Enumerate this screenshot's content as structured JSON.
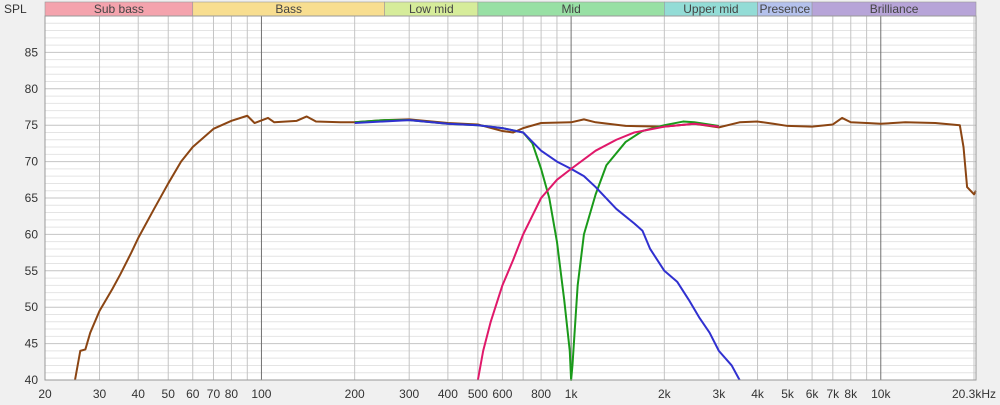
{
  "chart_data": {
    "type": "line",
    "ylabel": "SPL",
    "xunit": "Hz",
    "xscale": "log",
    "xlim": [
      20,
      20300
    ],
    "ylim": [
      40,
      90
    ],
    "grid": true,
    "bands": [
      {
        "label": "Sub bass",
        "from": 20,
        "to": 60,
        "color": "#f4a3ad"
      },
      {
        "label": "Bass",
        "from": 60,
        "to": 250,
        "color": "#f8de90"
      },
      {
        "label": "Low mid",
        "from": 250,
        "to": 500,
        "color": "#d6ec9a"
      },
      {
        "label": "Mid",
        "from": 500,
        "to": 2000,
        "color": "#98e0a4"
      },
      {
        "label": "Upper mid",
        "from": 2000,
        "to": 4000,
        "color": "#93dcd6"
      },
      {
        "label": "Presence",
        "from": 4000,
        "to": 6000,
        "color": "#b4c1ec"
      },
      {
        "label": "Brilliance",
        "from": 6000,
        "to": 20300,
        "color": "#b7a4d8"
      }
    ],
    "x_ticks": [
      {
        "v": 20,
        "label": "20"
      },
      {
        "v": 30,
        "label": "30"
      },
      {
        "v": 40,
        "label": "40"
      },
      {
        "v": 50,
        "label": "50"
      },
      {
        "v": 60,
        "label": "60"
      },
      {
        "v": 70,
        "label": "70"
      },
      {
        "v": 80,
        "label": "80"
      },
      {
        "v": 100,
        "label": "100"
      },
      {
        "v": 200,
        "label": "200"
      },
      {
        "v": 300,
        "label": "300"
      },
      {
        "v": 400,
        "label": "400"
      },
      {
        "v": 500,
        "label": "500"
      },
      {
        "v": 600,
        "label": "600"
      },
      {
        "v": 800,
        "label": "800"
      },
      {
        "v": 1000,
        "label": "1k"
      },
      {
        "v": 2000,
        "label": "2k"
      },
      {
        "v": 3000,
        "label": "3k"
      },
      {
        "v": 4000,
        "label": "4k"
      },
      {
        "v": 5000,
        "label": "5k"
      },
      {
        "v": 6000,
        "label": "6k"
      },
      {
        "v": 7000,
        "label": "7k"
      },
      {
        "v": 8000,
        "label": "8k"
      },
      {
        "v": 10000,
        "label": "10k"
      },
      {
        "v": 20300,
        "label": "20.3kHz"
      }
    ],
    "y_ticks": [
      40,
      45,
      50,
      55,
      60,
      65,
      70,
      75,
      80,
      85
    ],
    "series": [
      {
        "color": "#8b4513",
        "points": [
          [
            25,
            40
          ],
          [
            26,
            44
          ],
          [
            27,
            44.2
          ],
          [
            28,
            46.5
          ],
          [
            30,
            49.5
          ],
          [
            33,
            52.5
          ],
          [
            35,
            54.5
          ],
          [
            38,
            57.5
          ],
          [
            40,
            59.5
          ],
          [
            45,
            63.5
          ],
          [
            50,
            67
          ],
          [
            55,
            70
          ],
          [
            60,
            72
          ],
          [
            70,
            74.5
          ],
          [
            80,
            75.6
          ],
          [
            90,
            76.3
          ],
          [
            95,
            75.3
          ],
          [
            105,
            76
          ],
          [
            110,
            75.4
          ],
          [
            130,
            75.6
          ],
          [
            140,
            76.2
          ],
          [
            150,
            75.5
          ],
          [
            180,
            75.4
          ],
          [
            200,
            75.4
          ],
          [
            250,
            75.7
          ],
          [
            300,
            75.8
          ],
          [
            400,
            75.3
          ],
          [
            500,
            75.1
          ],
          [
            600,
            74.2
          ],
          [
            650,
            74
          ],
          [
            700,
            74.6
          ],
          [
            800,
            75.3
          ],
          [
            1000,
            75.4
          ],
          [
            1100,
            75.8
          ],
          [
            1200,
            75.4
          ],
          [
            1500,
            74.9
          ],
          [
            2000,
            74.8
          ],
          [
            2500,
            75.2
          ],
          [
            3000,
            74.7
          ],
          [
            3500,
            75.4
          ],
          [
            4000,
            75.5
          ],
          [
            4500,
            75.2
          ],
          [
            5000,
            74.9
          ],
          [
            6000,
            74.8
          ],
          [
            7000,
            75.1
          ],
          [
            7500,
            76
          ],
          [
            8000,
            75.4
          ],
          [
            9000,
            75.3
          ],
          [
            10000,
            75.2
          ],
          [
            12000,
            75.4
          ],
          [
            15000,
            75.3
          ],
          [
            18000,
            75
          ],
          [
            18500,
            72
          ],
          [
            19000,
            66.5
          ],
          [
            20000,
            65.5
          ],
          [
            20300,
            66
          ]
        ]
      },
      {
        "color": "#1a9a1a",
        "points": [
          [
            200,
            75.4
          ],
          [
            250,
            75.7
          ],
          [
            300,
            75.7
          ],
          [
            400,
            75.2
          ],
          [
            500,
            75
          ],
          [
            600,
            74.6
          ],
          [
            700,
            74
          ],
          [
            750,
            72.5
          ],
          [
            800,
            69
          ],
          [
            850,
            65
          ],
          [
            900,
            59
          ],
          [
            950,
            51
          ],
          [
            990,
            44
          ],
          [
            1000,
            40
          ],
          [
            1010,
            42
          ],
          [
            1050,
            53
          ],
          [
            1100,
            60
          ],
          [
            1200,
            65.5
          ],
          [
            1300,
            69.5
          ],
          [
            1500,
            72.7
          ],
          [
            1700,
            74.2
          ],
          [
            2000,
            75
          ],
          [
            2300,
            75.5
          ],
          [
            2500,
            75.4
          ],
          [
            3000,
            74.9
          ]
        ]
      },
      {
        "color": "#3030d0",
        "points": [
          [
            200,
            75.3
          ],
          [
            300,
            75.7
          ],
          [
            400,
            75.2
          ],
          [
            500,
            75
          ],
          [
            600,
            74.6
          ],
          [
            700,
            74
          ],
          [
            800,
            71.5
          ],
          [
            900,
            70
          ],
          [
            1000,
            69
          ],
          [
            1100,
            68
          ],
          [
            1200,
            66.5
          ],
          [
            1400,
            63.5
          ],
          [
            1600,
            61.5
          ],
          [
            1700,
            60.5
          ],
          [
            1800,
            58
          ],
          [
            2000,
            55
          ],
          [
            2200,
            53.5
          ],
          [
            2400,
            51
          ],
          [
            2600,
            48.5
          ],
          [
            2800,
            46.5
          ],
          [
            3000,
            44
          ],
          [
            3300,
            42
          ],
          [
            3500,
            40
          ]
        ]
      },
      {
        "color": "#e0186a",
        "points": [
          [
            500,
            40
          ],
          [
            520,
            44
          ],
          [
            550,
            48
          ],
          [
            600,
            53
          ],
          [
            650,
            56.5
          ],
          [
            700,
            60
          ],
          [
            800,
            65
          ],
          [
            900,
            67.5
          ],
          [
            1000,
            69
          ],
          [
            1200,
            71.5
          ],
          [
            1400,
            73
          ],
          [
            1600,
            74
          ],
          [
            2000,
            74.8
          ],
          [
            2500,
            75.2
          ],
          [
            3000,
            74.8
          ]
        ]
      }
    ]
  }
}
